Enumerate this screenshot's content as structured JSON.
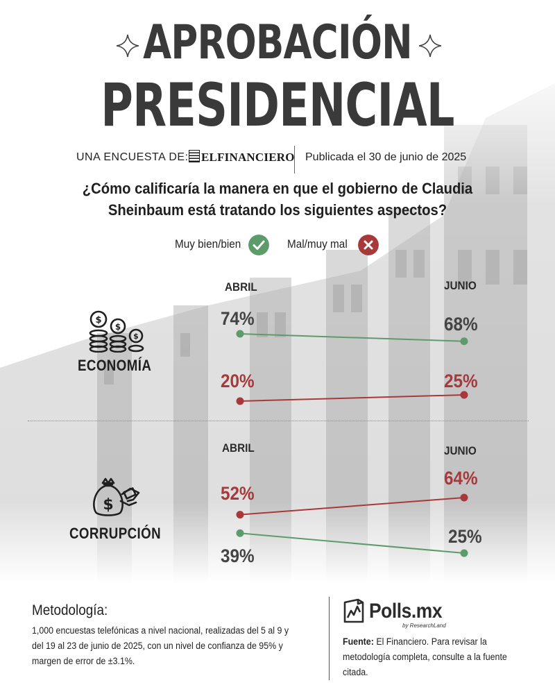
{
  "header": {
    "title_line1": "APROBACIÓN",
    "title_line2": "PRESIDENCIAL",
    "byline": "UNA ENCUESTA DE:",
    "brand": "ELFINANCIERO",
    "published": "Publicada el 30 de junio de 2025",
    "question": "¿Cómo calificaría la manera en que el gobierno de Claudia Sheinbaum está tratando los siguientes aspectos?"
  },
  "legend": {
    "positive": {
      "label": "Muy bien/bien",
      "color": "#5e9b6b",
      "icon": "check-icon"
    },
    "negative": {
      "label": "Mal/muy mal",
      "color": "#a8393b",
      "icon": "x-icon"
    }
  },
  "chart_data": [
    {
      "type": "line",
      "category": "ECONOMÍA",
      "icon": "coins-icon",
      "x": [
        "ABRIL",
        "JUNIO"
      ],
      "series": [
        {
          "name": "Muy bien/bien",
          "color": "#5e9b6b",
          "values": [
            74,
            68
          ],
          "labels": [
            "74%",
            "68%"
          ]
        },
        {
          "name": "Mal/muy mal",
          "color": "#a8393b",
          "values": [
            20,
            25
          ],
          "labels": [
            "20%",
            "25%"
          ]
        }
      ]
    },
    {
      "type": "line",
      "category": "CORRUPCIÓN",
      "icon": "money-bag-bribe-icon",
      "x": [
        "ABRIL",
        "JUNIO"
      ],
      "series": [
        {
          "name": "Mal/muy mal",
          "color": "#a8393b",
          "values": [
            52,
            64
          ],
          "labels": [
            "52%",
            "64%"
          ]
        },
        {
          "name": "Muy bien/bien",
          "color": "#5e9b6b",
          "values": [
            39,
            25
          ],
          "labels": [
            "39%",
            "25%"
          ]
        }
      ]
    }
  ],
  "methodology": {
    "title": "Metodología:",
    "text": "1,000 encuestas telefónicas a nivel nacional, realizadas del 5 al 9 y del 19 al 23 de junio de 2025, con un nivel de confianza de 95% y margen de error de ±3.1%."
  },
  "footer": {
    "logo_name": "Polls.mx",
    "logo_sub": "by ResearchLand",
    "source_label": "Fuente:",
    "source_text": "El Financiero. Para revisar la metodología completa, consulte a la fuente citada."
  }
}
